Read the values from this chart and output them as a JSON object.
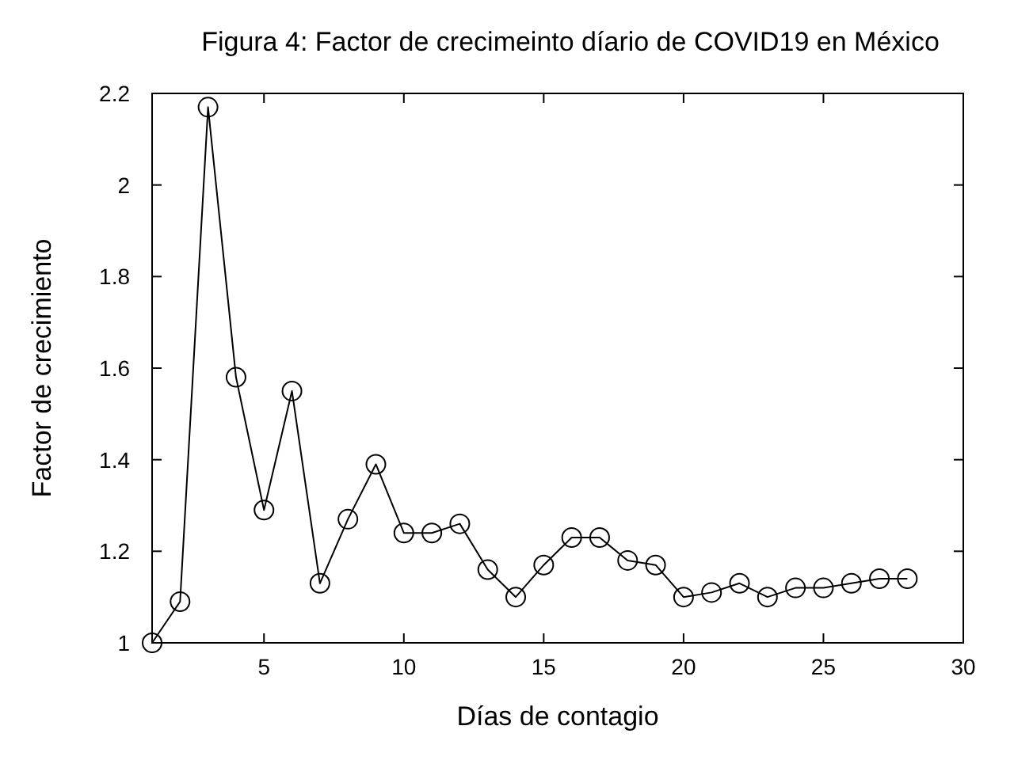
{
  "chart_data": {
    "type": "line",
    "title": "Figura 4: Factor de crecimeinto díario de COVID19 en México",
    "xlabel": "Días de contagio",
    "ylabel": "Factor de crecimiento",
    "x": [
      1,
      2,
      3,
      4,
      5,
      6,
      7,
      8,
      9,
      10,
      11,
      12,
      13,
      14,
      15,
      16,
      17,
      18,
      19,
      20,
      21,
      22,
      23,
      24,
      25,
      26,
      27,
      28
    ],
    "series": [
      {
        "color": "#000000",
        "values": [
          1.0,
          1.09,
          2.17,
          1.58,
          1.29,
          1.55,
          1.13,
          1.27,
          1.39,
          1.24,
          1.24,
          1.26,
          1.16,
          1.1,
          1.17,
          1.23,
          1.23,
          1.18,
          1.17,
          1.1,
          1.11,
          1.13,
          1.1,
          1.12,
          1.12,
          1.13,
          1.14,
          1.14
        ]
      }
    ],
    "xlim": [
      1,
      30
    ],
    "xticks": [
      5,
      10,
      15,
      20,
      25,
      30
    ],
    "ylim": [
      1,
      2.2
    ],
    "yticks": [
      1,
      1.2,
      1.4,
      1.6,
      1.8,
      2,
      2.2
    ],
    "marker": "circle",
    "line_style": "solid"
  }
}
